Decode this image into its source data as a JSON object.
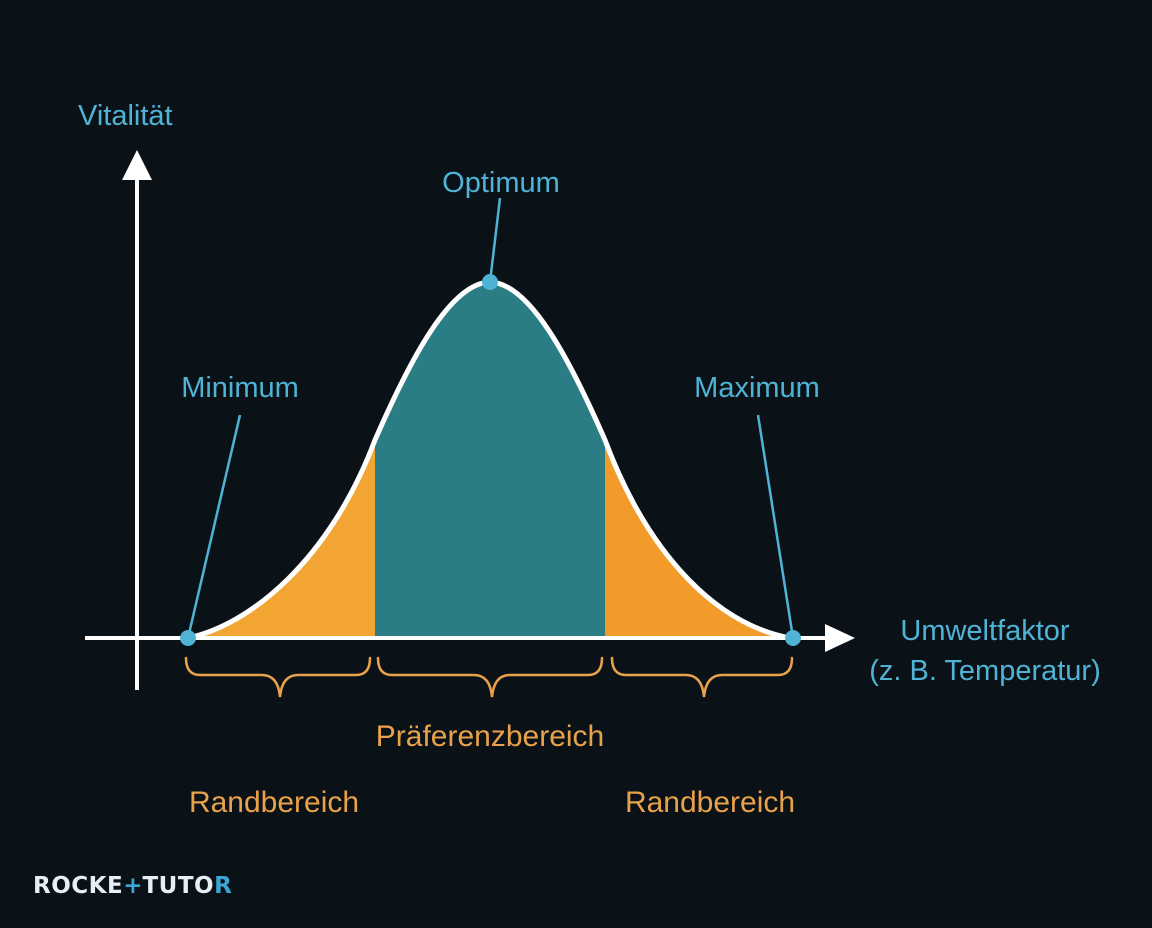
{
  "diagram": {
    "axes": {
      "y_label": "Vitalität",
      "x_label_line1": "Umweltfaktor",
      "x_label_line2": "(z. B. Temperatur)"
    },
    "points": {
      "optimum": "Optimum",
      "minimum": "Minimum",
      "maximum": "Maximum"
    },
    "ranges": {
      "preference": "Präferenzbereich",
      "margin_left": "Randbereich",
      "margin_right": "Randbereich"
    },
    "colors": {
      "background": "#0b1217",
      "axis": "#ffffff",
      "curve_outline": "#ffffff",
      "preference_fill": "#2a7c85",
      "margin_fill_left": "#f2a532",
      "margin_fill_right": "#f29a2a",
      "label_blue": "#4fb3d6",
      "label_orange": "#e9a14a",
      "marker": "#4fb3d6"
    }
  },
  "logo": {
    "part1": "ROCKE",
    "cross": "+",
    "part2": "TUTO",
    "last": "R"
  }
}
